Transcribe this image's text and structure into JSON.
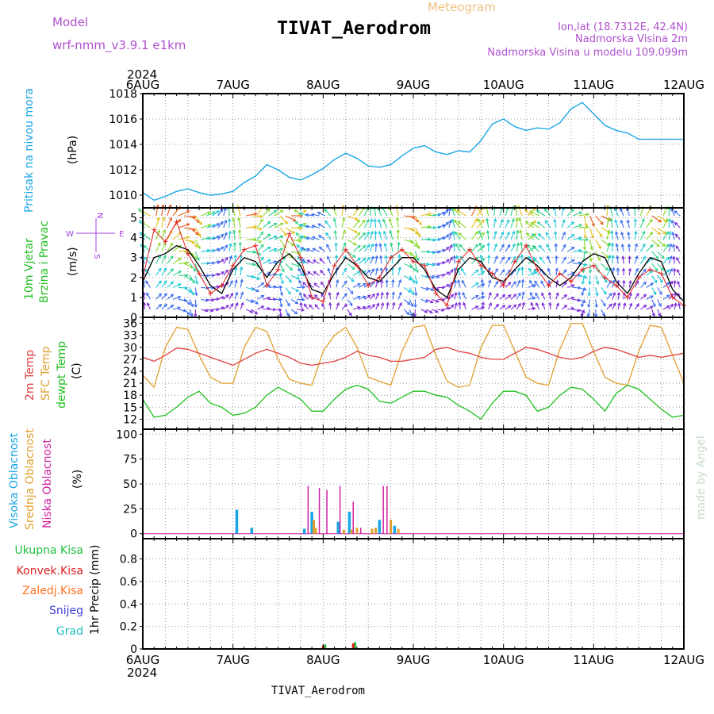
{
  "header": {
    "model_label": "Model",
    "model_name": "wrf-nmm_v3.9.1 e1km",
    "title": "TIVAT_Aerodrom",
    "subtitle": "Meteogram",
    "coords": "lon,lat (18.7312E, 42.4N)",
    "elev": "Nadmorska Visina 2m",
    "elev_model": "Nadmorska Visina u modelu 109.099m",
    "footer": "TIVAT_Aerodrom",
    "credit": "made by Angel",
    "year": "2024"
  },
  "colors": {
    "pressure": "#1aa6e6",
    "wind_speed": "#000000",
    "gust": "#e02020",
    "t2m": "#e04040",
    "sfc": "#e0a030",
    "dew": "#20c020",
    "high_cloud": "#1aa6e6",
    "mid_cloud": "#e0a030",
    "low_cloud": "#d020a0",
    "tot": "#20c040",
    "conv": "#e02020",
    "frz": "#ff7020",
    "snow": "#4040e0",
    "grad": "#20c0c0",
    "compass": "#a040e0"
  },
  "x_ticks": [
    "6AUG",
    "7AUG",
    "8AUG",
    "9AUG",
    "10AUG",
    "11AUG",
    "12AUG"
  ],
  "compass": {
    "n": "N",
    "w": "W",
    "e": "E",
    "s": "S"
  },
  "chart_data": [
    {
      "type": "line",
      "panel": "pressure",
      "ylabel": "Pritisak na nivou mora",
      "unit": "(hPa)",
      "ylim": [
        1009,
        1018
      ],
      "yticks": [
        "1010",
        "1012",
        "1014",
        "1016",
        "1018"
      ],
      "x_hours": [
        0,
        3,
        6,
        9,
        12,
        15,
        18,
        21,
        24,
        27,
        30,
        33,
        36,
        39,
        42,
        45,
        48,
        51,
        54,
        57,
        60,
        63,
        66,
        69,
        72,
        75,
        78,
        81,
        84,
        87,
        90,
        93,
        96,
        99,
        102,
        105,
        108,
        111,
        114,
        117,
        120,
        123,
        126,
        129,
        132,
        135,
        138,
        141,
        144
      ],
      "values": [
        1010.2,
        1009.6,
        1009.9,
        1010.3,
        1010.5,
        1010.2,
        1010.0,
        1010.1,
        1010.3,
        1011.0,
        1011.5,
        1012.4,
        1012.0,
        1011.4,
        1011.2,
        1011.6,
        1012.1,
        1012.8,
        1013.3,
        1012.9,
        1012.3,
        1012.2,
        1012.4,
        1013.1,
        1013.7,
        1013.9,
        1013.4,
        1013.2,
        1013.5,
        1013.4,
        1014.3,
        1015.6,
        1016.0,
        1015.4,
        1015.1,
        1015.3,
        1015.2,
        1015.7,
        1016.8,
        1017.3,
        1016.4,
        1015.5,
        1015.1,
        1014.9,
        1014.4,
        1014.4,
        1014.4,
        1014.4,
        1014.4
      ]
    },
    {
      "type": "line",
      "panel": "wind",
      "ylabel": "10m Vjetar",
      "ylabel2": "Brzina i Pravac",
      "unit": "(m/s)",
      "ylim": [
        0,
        5.5
      ],
      "yticks": [
        "0",
        "1",
        "2",
        "3",
        "4",
        "5"
      ],
      "series": [
        {
          "name": "speed",
          "x_hours": [
            0,
            3,
            6,
            9,
            12,
            15,
            18,
            21,
            24,
            27,
            30,
            33,
            36,
            39,
            42,
            45,
            48,
            51,
            54,
            57,
            60,
            63,
            66,
            69,
            72,
            75,
            78,
            81,
            84,
            87,
            90,
            93,
            96,
            99,
            102,
            105,
            108,
            111,
            114,
            117,
            120,
            123,
            126,
            129,
            132,
            135,
            138,
            141,
            144
          ],
          "values": [
            1.8,
            3.0,
            3.2,
            3.6,
            3.4,
            2.6,
            1.6,
            1.2,
            2.4,
            3.0,
            2.8,
            2.0,
            2.8,
            3.2,
            2.6,
            1.4,
            1.2,
            2.2,
            3.0,
            2.6,
            2.0,
            1.8,
            2.4,
            3.0,
            3.0,
            2.4,
            1.4,
            1.0,
            2.4,
            3.0,
            2.8,
            2.0,
            1.8,
            2.4,
            3.0,
            2.6,
            2.0,
            1.6,
            2.0,
            2.8,
            3.2,
            3.0,
            1.8,
            1.2,
            2.2,
            3.0,
            2.8,
            1.4,
            0.8
          ]
        },
        {
          "name": "gust",
          "x_hours": [
            0,
            3,
            6,
            9,
            12,
            15,
            18,
            21,
            24,
            27,
            30,
            33,
            36,
            39,
            42,
            45,
            48,
            51,
            54,
            57,
            60,
            63,
            66,
            69,
            72,
            75,
            78,
            81,
            84,
            87,
            90,
            93,
            96,
            99,
            102,
            105,
            108,
            111,
            114,
            117,
            120,
            123,
            126,
            129,
            132,
            135,
            138,
            141,
            144
          ],
          "values": [
            2.0,
            4.4,
            3.8,
            4.8,
            3.2,
            2.2,
            1.2,
            1.6,
            2.6,
            3.4,
            3.6,
            1.6,
            2.4,
            4.2,
            3.0,
            1.0,
            0.8,
            2.6,
            3.4,
            2.6,
            1.6,
            2.0,
            3.0,
            3.4,
            2.8,
            2.6,
            1.2,
            0.6,
            2.8,
            3.4,
            2.6,
            2.2,
            1.6,
            2.8,
            3.6,
            2.4,
            1.6,
            2.2,
            1.8,
            2.4,
            2.6,
            2.0,
            1.6,
            1.0,
            2.0,
            2.4,
            2.2,
            1.0,
            0.6
          ]
        }
      ]
    },
    {
      "type": "line",
      "panel": "temperature",
      "ylabel": "2m Temp",
      "ylabel2": "SFC Temp",
      "ylabel3": "dewpt Temp",
      "unit": "(C)",
      "ylim": [
        9.5,
        37.5
      ],
      "yticks": [
        "12",
        "15",
        "18",
        "21",
        "24",
        "27",
        "30",
        "33",
        "36"
      ],
      "series": [
        {
          "name": "2m Temp",
          "x_hours": [
            0,
            3,
            6,
            9,
            12,
            15,
            18,
            21,
            24,
            27,
            30,
            33,
            36,
            39,
            42,
            45,
            48,
            51,
            54,
            57,
            60,
            63,
            66,
            69,
            72,
            75,
            78,
            81,
            84,
            87,
            90,
            93,
            96,
            99,
            102,
            105,
            108,
            111,
            114,
            117,
            120,
            123,
            126,
            129,
            132,
            135,
            138,
            141,
            144
          ],
          "values": [
            27.5,
            26.5,
            28.0,
            29.8,
            29.5,
            28.5,
            27.5,
            26.5,
            25.5,
            27.0,
            28.5,
            29.5,
            28.5,
            27.5,
            26.0,
            25.5,
            26.0,
            26.5,
            27.5,
            29.0,
            28.0,
            27.5,
            26.5,
            26.5,
            27.0,
            27.5,
            29.5,
            30.0,
            29.0,
            28.5,
            27.5,
            27.0,
            27.0,
            28.5,
            30.0,
            29.5,
            28.5,
            27.5,
            27.0,
            27.5,
            29.0,
            30.0,
            29.5,
            28.5,
            27.5,
            28.0,
            27.5,
            28.0,
            28.5
          ]
        },
        {
          "name": "SFC Temp",
          "x_hours": [
            0,
            3,
            6,
            9,
            12,
            15,
            18,
            21,
            24,
            27,
            30,
            33,
            36,
            39,
            42,
            45,
            48,
            51,
            54,
            57,
            60,
            63,
            66,
            69,
            72,
            75,
            78,
            81,
            84,
            87,
            90,
            93,
            96,
            99,
            102,
            105,
            108,
            111,
            114,
            117,
            120,
            123,
            126,
            129,
            132,
            135,
            138,
            141,
            144
          ],
          "values": [
            23.0,
            20.0,
            30.0,
            35.0,
            34.5,
            28.0,
            22.5,
            21.0,
            21.0,
            30.0,
            35.0,
            34.0,
            27.0,
            22.0,
            21.0,
            20.5,
            29.0,
            33.0,
            35.0,
            30.0,
            22.5,
            21.5,
            20.5,
            29.0,
            35.0,
            35.5,
            28.0,
            21.5,
            20.0,
            20.5,
            30.0,
            35.5,
            35.5,
            29.0,
            22.5,
            21.0,
            20.5,
            29.5,
            36.0,
            36.0,
            29.0,
            22.5,
            21.0,
            20.5,
            29.0,
            35.5,
            35.0,
            28.0,
            21.0
          ]
        },
        {
          "name": "dewpt Temp",
          "x_hours": [
            0,
            3,
            6,
            9,
            12,
            15,
            18,
            21,
            24,
            27,
            30,
            33,
            36,
            39,
            42,
            45,
            48,
            51,
            54,
            57,
            60,
            63,
            66,
            69,
            72,
            75,
            78,
            81,
            84,
            87,
            90,
            93,
            96,
            99,
            102,
            105,
            108,
            111,
            114,
            117,
            120,
            123,
            126,
            129,
            132,
            135,
            138,
            141,
            144
          ],
          "values": [
            17.0,
            12.5,
            13.0,
            15.0,
            17.5,
            19.0,
            16.0,
            15.0,
            13.0,
            13.5,
            15.0,
            18.0,
            20.0,
            18.5,
            17.0,
            14.0,
            14.0,
            17.0,
            19.5,
            20.5,
            19.5,
            16.5,
            16.0,
            17.5,
            19.0,
            19.0,
            18.0,
            17.5,
            15.5,
            14.0,
            12.0,
            16.0,
            19.0,
            19.0,
            18.0,
            14.0,
            15.0,
            18.0,
            20.0,
            19.5,
            17.0,
            14.0,
            18.5,
            20.5,
            19.5,
            17.0,
            14.5,
            12.5,
            13.0
          ]
        }
      ]
    },
    {
      "type": "bar",
      "panel": "cloud",
      "ylabel": "Visoka Oblacnost",
      "ylabel2": "Srednja Oblacnost",
      "ylabel3": "Niska Oblacnost",
      "unit": "(%)",
      "ylim": [
        -5,
        105
      ],
      "yticks": [
        "0",
        "25",
        "50",
        "75",
        "100"
      ],
      "series": [
        {
          "name": "Visoka Oblacnost",
          "x_hours": [
            25,
            29,
            43,
            45,
            52,
            55,
            63,
            67
          ],
          "values": [
            24,
            6,
            5,
            22,
            12,
            22,
            14,
            8
          ]
        },
        {
          "name": "Srednja Oblacnost",
          "x_hours": [
            45.5,
            46,
            53.5,
            55.5,
            57,
            61,
            62,
            66,
            68
          ],
          "values": [
            14,
            6,
            4,
            4,
            6,
            5,
            6,
            14,
            5
          ]
        },
        {
          "name": "Niska Oblacnost",
          "x_hours": [
            44,
            47,
            49,
            52.5,
            56,
            58,
            64,
            65
          ],
          "values": [
            48,
            46,
            44,
            48,
            32,
            6,
            48,
            48
          ]
        }
      ]
    },
    {
      "type": "bar",
      "panel": "precip",
      "ylabel": "1hr Precip (mm)",
      "legend": [
        "Ukupna Kisa",
        "Konvek.Kisa",
        "Zaledj.Kisa",
        "Snijeg",
        "Grad"
      ],
      "ylim": [
        0,
        0.98
      ],
      "yticks": [
        "0",
        "0.2",
        "0.4",
        "0.6",
        "0.8"
      ],
      "series": [
        {
          "name": "Ukupna Kisa",
          "x_hours": [
            48.5,
            56.5
          ],
          "values": [
            0.04,
            0.06
          ]
        },
        {
          "name": "Konvek.Kisa",
          "x_hours": [
            48,
            56
          ],
          "values": [
            0.03,
            0.05
          ]
        }
      ]
    }
  ]
}
